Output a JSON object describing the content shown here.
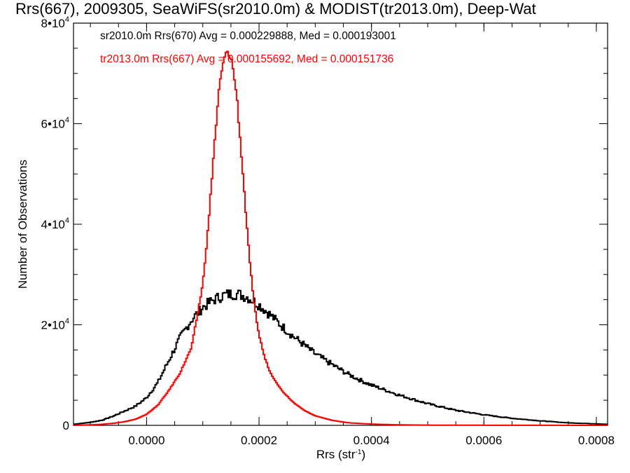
{
  "chart_data": {
    "type": "line",
    "title": "Rrs(667), 2009305, SeaWiFS(sr2010.0m) & MODIST(tr2013.0m), Deep-Wat",
    "xlabel": "Rrs (str",
    "xlabel_sup": "-1",
    "xlabel_end": ")",
    "ylabel": "Number of Observations",
    "xlim": [
      -0.00013,
      0.00082
    ],
    "ylim": [
      0,
      80000
    ],
    "x_ticks": [
      0.0,
      0.0002,
      0.0004,
      0.0006,
      0.0008
    ],
    "x_tick_labels": [
      "0.0000",
      "0.0002",
      "0.0004",
      "0.0006",
      "0.0008"
    ],
    "y_ticks": [
      0,
      20000,
      40000,
      60000,
      80000
    ],
    "y_tick_labels": [
      {
        "base": "0",
        "exp": ""
      },
      {
        "base": "2•10",
        "exp": "4"
      },
      {
        "base": "4•10",
        "exp": "4"
      },
      {
        "base": "6•10",
        "exp": "4"
      },
      {
        "base": "8•10",
        "exp": "4"
      }
    ],
    "grid": false,
    "annotations": [
      {
        "text": "sr2010.0m Rrs(670) Avg = 0.000229888, Med = 0.000193001",
        "color": "#000000"
      },
      {
        "text": "tr2013.0m Rrs(667) Avg = 0.000155692, Med = 0.000151736",
        "color": "#ff0000"
      }
    ],
    "series": [
      {
        "color": "#000000",
        "x": [
          -0.00013,
          -0.0001,
          -8e-05,
          -6e-05,
          -4e-05,
          -2e-05,
          0.0,
          2e-05,
          4e-05,
          6e-05,
          8e-05,
          0.0001,
          0.00012,
          0.00014,
          0.00016,
          0.00018,
          0.0002,
          0.00022,
          0.00024,
          0.00026,
          0.00028,
          0.0003,
          0.00032,
          0.00034,
          0.00036,
          0.00038,
          0.0004,
          0.00045,
          0.0005,
          0.00055,
          0.0006,
          0.00065,
          0.0007,
          0.00075,
          0.0008,
          0.00082
        ],
        "y": [
          200,
          600,
          1000,
          1800,
          2800,
          3800,
          5500,
          8500,
          13000,
          17500,
          21000,
          23500,
          25000,
          26000,
          26200,
          25500,
          24000,
          22000,
          19800,
          17800,
          16000,
          14200,
          12800,
          11400,
          10100,
          9000,
          8000,
          6000,
          4300,
          3000,
          2100,
          1400,
          900,
          500,
          300,
          200
        ]
      },
      {
        "color": "#ff0000",
        "x": [
          -0.00013,
          -0.0001,
          -8e-05,
          -6e-05,
          -4e-05,
          -2e-05,
          0.0,
          2e-05,
          4e-05,
          6e-05,
          8e-05,
          0.0001,
          0.00011,
          0.00012,
          0.00013,
          0.00014,
          0.00015,
          0.00016,
          0.00017,
          0.00018,
          0.00019,
          0.0002,
          0.00021,
          0.00022,
          0.00024,
          0.00026,
          0.00028,
          0.0003,
          0.00033,
          0.00036,
          0.0004,
          0.00045,
          0.0005,
          0.0006,
          0.0007,
          0.00082
        ],
        "y": [
          0,
          100,
          200,
          400,
          700,
          1200,
          2200,
          4000,
          7000,
          10500,
          15500,
          28000,
          40000,
          55000,
          68000,
          74000,
          73500,
          66000,
          52000,
          37000,
          25000,
          18000,
          13500,
          10500,
          7000,
          4700,
          3000,
          1900,
          1000,
          500,
          250,
          100,
          50,
          20,
          10,
          0
        ]
      }
    ]
  }
}
